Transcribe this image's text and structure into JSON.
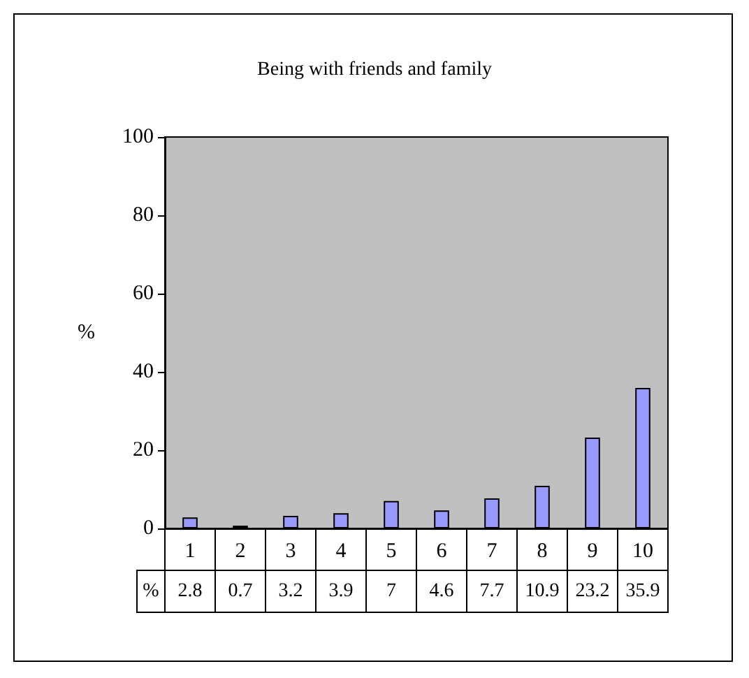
{
  "chart_data": {
    "type": "bar",
    "title": "Being with friends and family",
    "ylabel": "%",
    "categories": [
      "1",
      "2",
      "3",
      "4",
      "5",
      "6",
      "7",
      "8",
      "9",
      "10"
    ],
    "series": [
      {
        "name": "%",
        "color": "#9999ff",
        "values": [
          2.8,
          0.7,
          3.2,
          3.9,
          7,
          4.6,
          7.7,
          10.9,
          23.2,
          35.9
        ]
      }
    ],
    "ylim": [
      0,
      100
    ],
    "yticks": [
      0,
      20,
      40,
      60,
      80,
      100
    ],
    "data_labels": true
  }
}
